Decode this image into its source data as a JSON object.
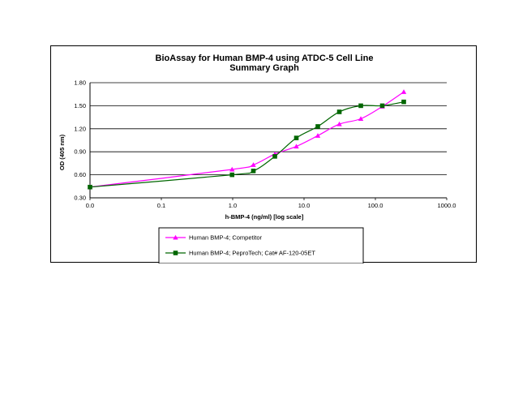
{
  "chart_data": {
    "type": "line",
    "title": "BioAssay for Human BMP-4 using ATDC-5 Cell Line",
    "subtitle": "Summary Graph",
    "xlabel": "h-BMP-4 (ng/ml) [log scale]",
    "ylabel": "OD (405 nm)",
    "x_scale": "log",
    "xlim": [
      0.01,
      1000
    ],
    "ylim": [
      0.3,
      1.8
    ],
    "x_tick_values": [
      0.01,
      0.1,
      1,
      10,
      100,
      1000
    ],
    "x_ticks": [
      "0.0",
      "0.1",
      "1.0",
      "10.0",
      "100.0",
      "1000.0"
    ],
    "y_tick_values": [
      0.3,
      0.6,
      0.9,
      1.2,
      1.5,
      1.8
    ],
    "y_ticks": [
      "0.30",
      "0.60",
      "0.90",
      "1.20",
      "1.50",
      "1.80"
    ],
    "grid": "horizontal",
    "legend_position": "bottom",
    "series": [
      {
        "name": "Human BMP-4; Competitor",
        "color": "#ff00ff",
        "marker": "triangle",
        "x": [
          0.01,
          0.98,
          1.95,
          3.9,
          7.8,
          15.6,
          31.25,
          62.5,
          125,
          250
        ],
        "y": [
          0.44,
          0.67,
          0.73,
          0.87,
          0.97,
          1.11,
          1.26,
          1.33,
          1.49,
          1.68
        ]
      },
      {
        "name": "Human BMP-4; PeproTech; Cat# AF-120-05ET",
        "color": "#006600",
        "marker": "square",
        "x": [
          0.01,
          0.98,
          1.95,
          3.9,
          7.8,
          15.6,
          31.25,
          62.5,
          125,
          250
        ],
        "y": [
          0.44,
          0.6,
          0.65,
          0.84,
          1.08,
          1.23,
          1.42,
          1.5,
          1.5,
          1.55
        ]
      }
    ]
  }
}
